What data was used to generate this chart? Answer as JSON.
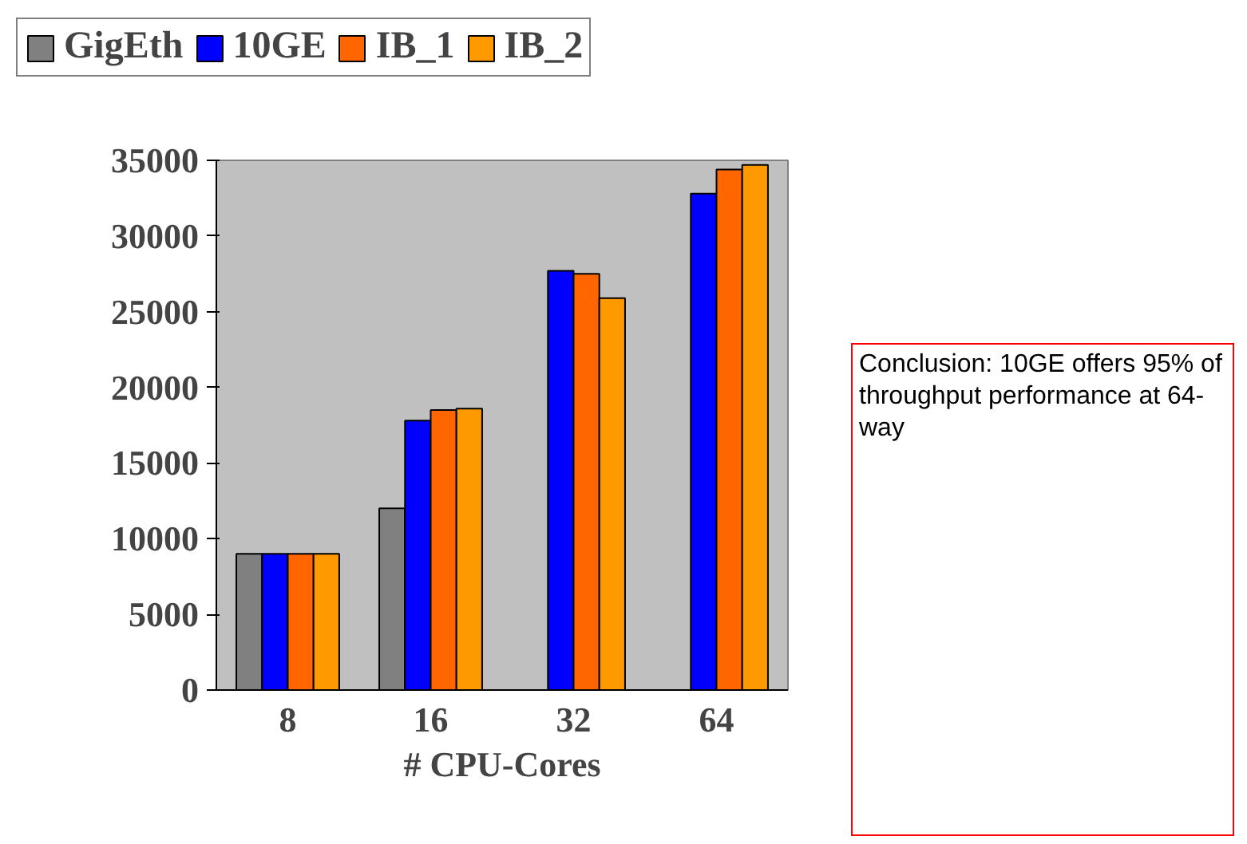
{
  "chart_data": {
    "type": "bar",
    "categories": [
      "8",
      "16",
      "32",
      "64"
    ],
    "xlabel": "# CPU-Cores",
    "series": [
      {
        "name": "GigEth",
        "color": "#808080",
        "values": [
          9000,
          12000,
          0,
          0
        ]
      },
      {
        "name": "10GE",
        "color": "#0000ff",
        "values": [
          9000,
          17800,
          27700,
          32800
        ]
      },
      {
        "name": "IB_1",
        "color": "#ff6600",
        "values": [
          9000,
          18500,
          27500,
          34400
        ]
      },
      {
        "name": "IB_2",
        "color": "#ff9900",
        "values": [
          9000,
          18600,
          25900,
          34700
        ]
      }
    ],
    "ylim": [
      0,
      35000
    ],
    "yticks": [
      0,
      5000,
      10000,
      15000,
      20000,
      25000,
      30000,
      35000
    ],
    "grid": false,
    "legend": "top left",
    "annotations": [
      "Conclusion: 10GE offers 95% of throughput performance at 64-way"
    ]
  }
}
